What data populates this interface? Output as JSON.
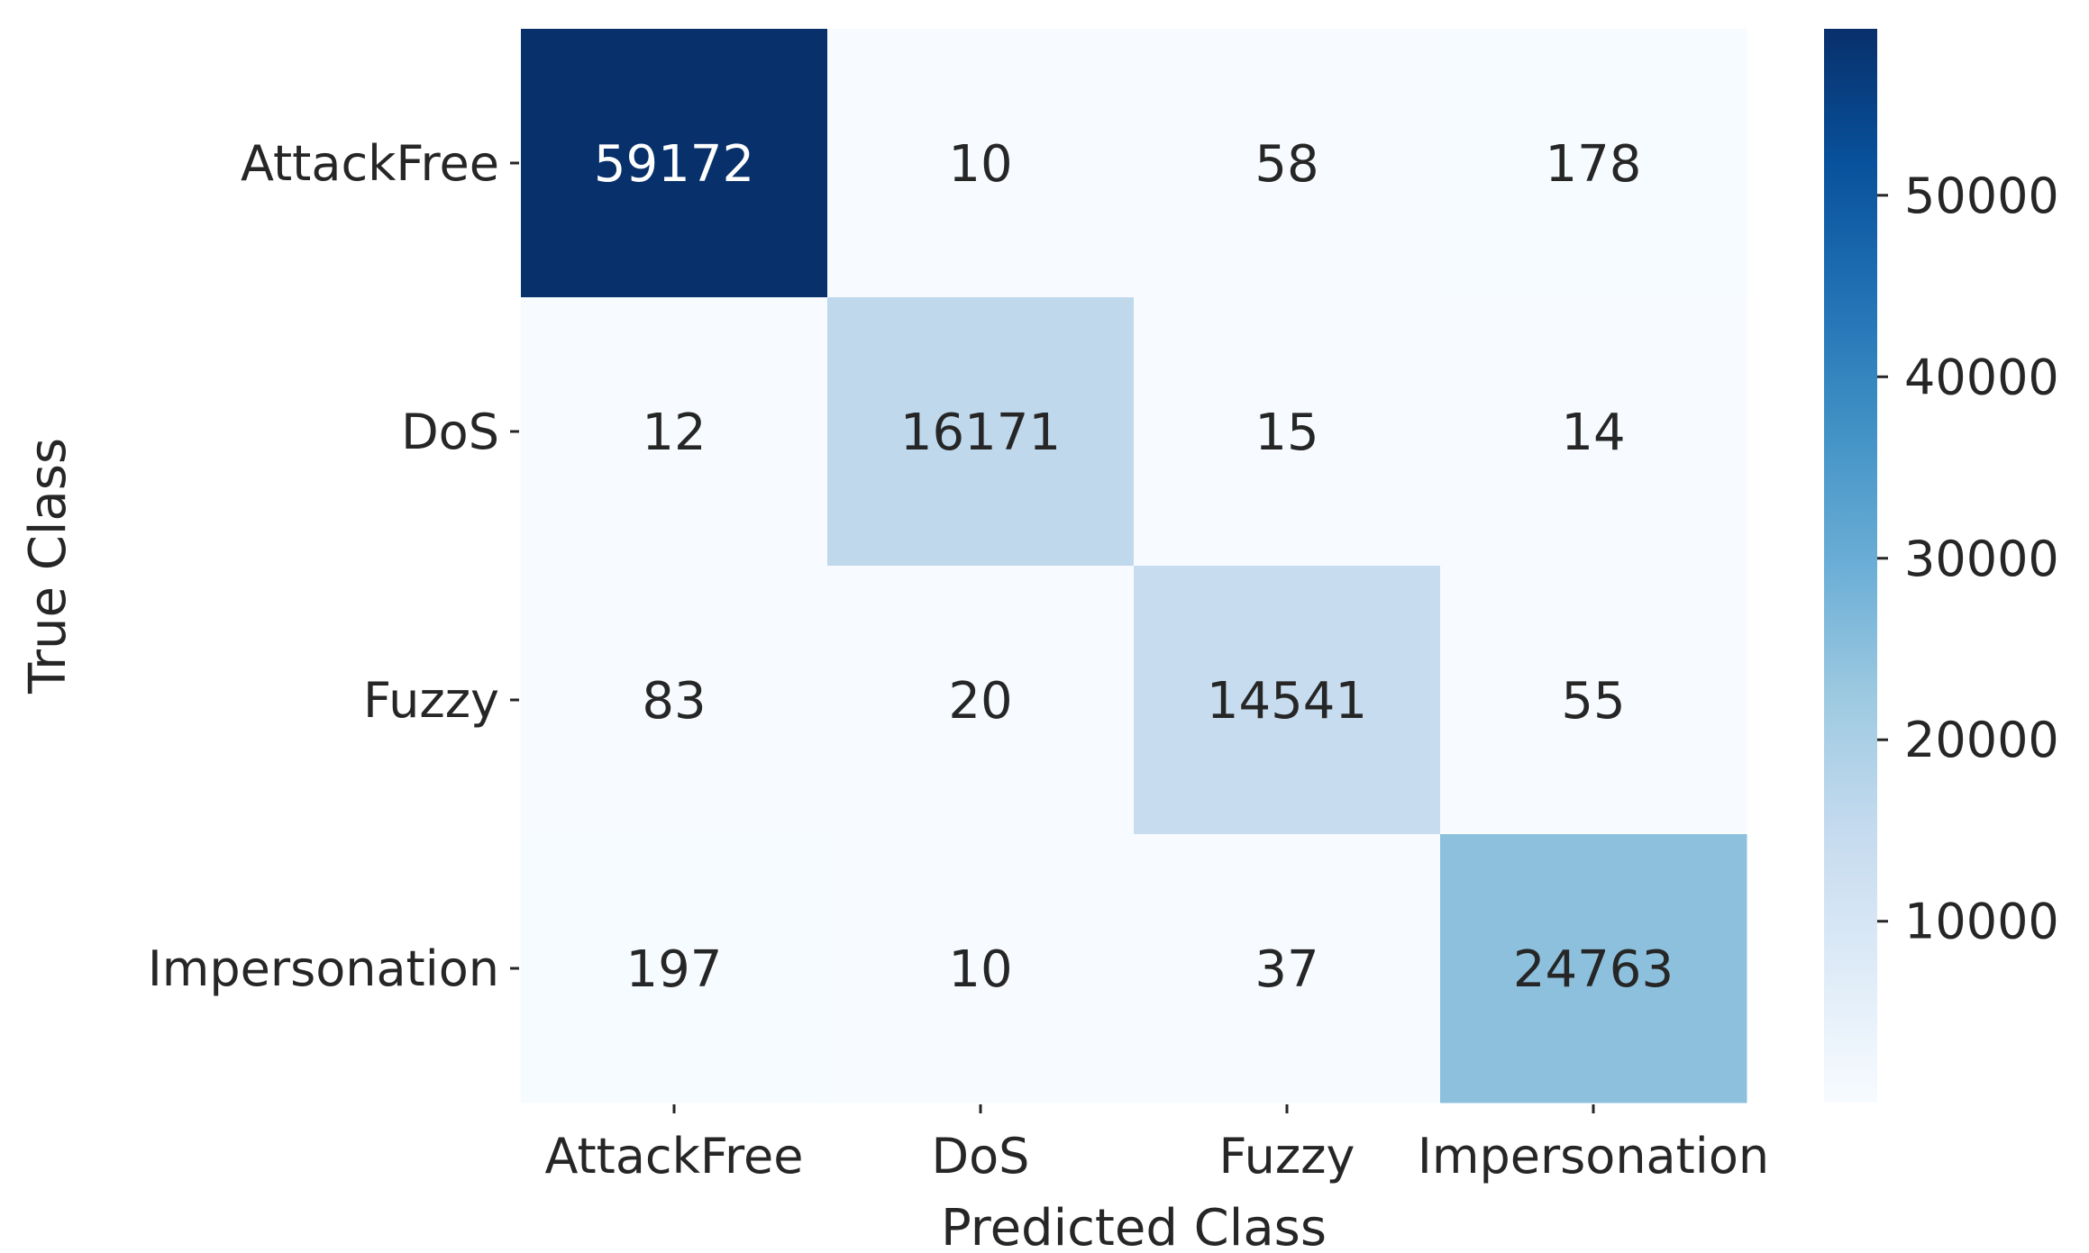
{
  "chart_data": {
    "type": "heatmap",
    "title": "",
    "xlabel": "Predicted Class",
    "ylabel": "True Class",
    "x_categories": [
      "AttackFree",
      "DoS",
      "Fuzzy",
      "Impersonation"
    ],
    "y_categories": [
      "AttackFree",
      "DoS",
      "Fuzzy",
      "Impersonation"
    ],
    "matrix": [
      [
        59172,
        10,
        58,
        178
      ],
      [
        12,
        16171,
        15,
        14
      ],
      [
        83,
        20,
        14541,
        55
      ],
      [
        197,
        10,
        37,
        24763
      ]
    ],
    "colormap": "Blues",
    "colorbar": {
      "range": [
        10,
        59172
      ],
      "ticks": [
        10000,
        20000,
        30000,
        40000,
        50000
      ],
      "tick_labels": [
        "10000",
        "20000",
        "30000",
        "40000",
        "50000"
      ]
    },
    "annotation_dark_text_color": "#262626",
    "annotation_light_text_color": "#ffffff"
  }
}
